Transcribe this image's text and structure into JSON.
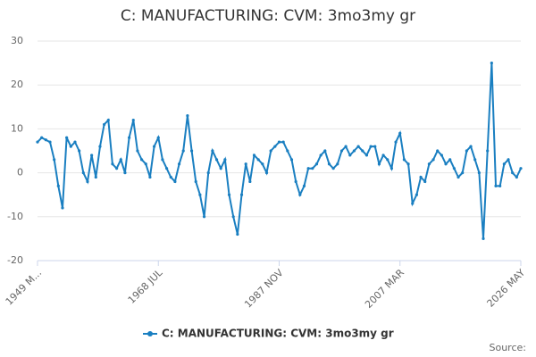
{
  "chart_data": {
    "type": "line",
    "title": "C: MANUFACTURING: CVM: 3mo3my gr",
    "source": "Source:",
    "categories": [
      "1949 M...",
      null,
      null,
      null,
      null,
      null,
      null,
      null,
      null,
      null,
      null,
      null,
      null,
      null,
      null,
      null,
      null,
      null,
      null,
      null,
      null,
      null,
      null,
      null,
      null,
      null,
      null,
      null,
      null,
      "1968 JUL",
      null,
      null,
      null,
      null,
      null,
      null,
      null,
      null,
      null,
      null,
      null,
      null,
      null,
      null,
      null,
      null,
      null,
      null,
      null,
      null,
      null,
      null,
      null,
      null,
      null,
      null,
      null,
      null,
      "1987 NOV",
      null,
      null,
      null,
      null,
      null,
      null,
      null,
      null,
      null,
      null,
      null,
      null,
      null,
      null,
      null,
      null,
      null,
      null,
      null,
      null,
      null,
      null,
      null,
      null,
      null,
      null,
      null,
      null,
      "2007 MAR",
      null,
      null,
      null,
      null,
      null,
      null,
      null,
      null,
      null,
      null,
      null,
      null,
      null,
      null,
      null,
      null,
      null,
      null,
      null,
      null,
      null,
      null,
      null,
      null,
      null,
      null,
      null,
      null,
      "2026 MAY"
    ],
    "series": [
      {
        "name": "C: MANUFACTURING: CVM: 3mo3my gr",
        "color": "#1a7fc1",
        "values": [
          7,
          8,
          7.5,
          7,
          3,
          -3,
          -8,
          8,
          6,
          7,
          5,
          0,
          -2,
          4,
          -1,
          6,
          11,
          12,
          2,
          1,
          3,
          0,
          8,
          12,
          5,
          3,
          2,
          -1,
          6,
          8,
          3,
          1,
          -1,
          -2,
          2,
          5,
          13,
          5,
          -2,
          -5,
          -10,
          0,
          5,
          3,
          1,
          3,
          -5,
          -10,
          -14,
          -5,
          2,
          -2,
          4,
          3,
          2,
          0,
          5,
          6,
          7,
          7,
          5,
          3,
          -2,
          -5,
          -3,
          1,
          1,
          2,
          4,
          5,
          2,
          1,
          2,
          5,
          6,
          4,
          5,
          6,
          5,
          4,
          6,
          6,
          2,
          4,
          3,
          1,
          7,
          9,
          3,
          2,
          -7,
          -5,
          -1,
          -2,
          2,
          3,
          5,
          4,
          2,
          3,
          1,
          -1,
          0,
          5,
          6,
          3,
          0,
          -15,
          5,
          25,
          -3,
          -3,
          2,
          3,
          0,
          -1,
          1
        ]
      }
    ],
    "ylim": [
      -20,
      30
    ],
    "yticks": [
      -20,
      -10,
      0,
      10,
      20,
      30
    ],
    "grid": true
  }
}
